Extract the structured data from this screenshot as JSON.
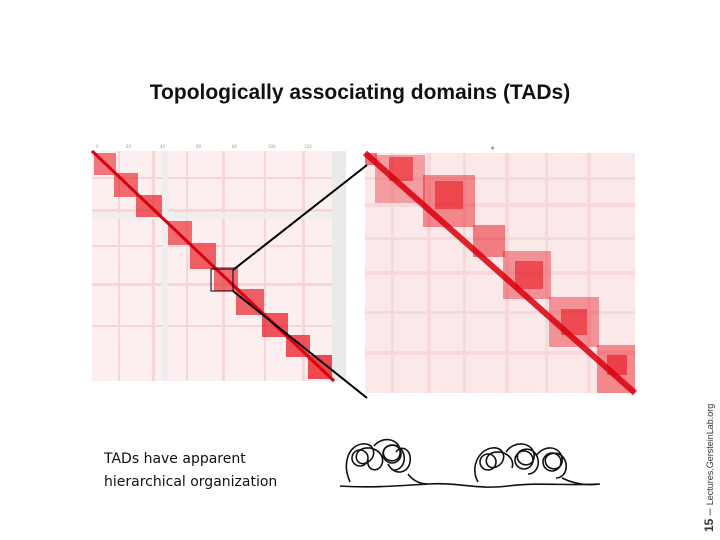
{
  "slide": {
    "title": "Topologically associating domains (TADs)",
    "caption_line1": "TADs have apparent",
    "caption_line2": "hierarchical organization",
    "footer_number": "15",
    "footer_sep": " – ",
    "footer_site": "Lectures.GersteinLab.org"
  },
  "colors": {
    "heatmap_red": "#e8101a",
    "heatmap_background": "#fbe9ea",
    "connector_line": "#000000"
  },
  "figures": {
    "left_heatmap_icon": "hic-contact-map",
    "right_heatmap_icon": "hic-contact-map-zoom",
    "chromatin_icon": "chromatin-loops"
  }
}
